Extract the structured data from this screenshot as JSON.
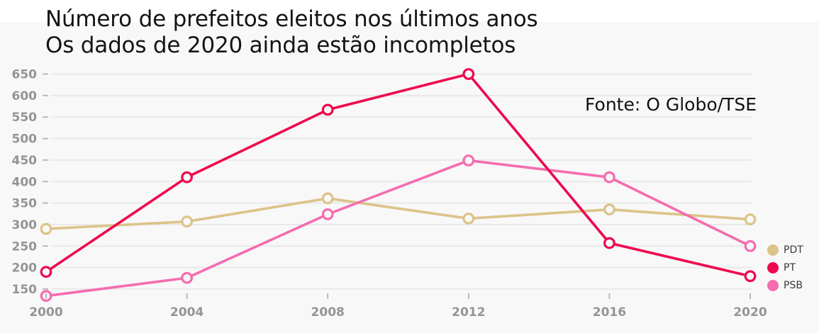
{
  "chart_data": {
    "type": "line",
    "title": "Número de prefeitos eleitos nos últimos anos",
    "subtitle": "Os dados de 2020 ainda estão incompletos",
    "source": "Fonte: O Globo/TSE",
    "categories": [
      "2000",
      "2004",
      "2008",
      "2012",
      "2016",
      "2020"
    ],
    "series": [
      {
        "name": "PDT",
        "color": "#dcc389",
        "values": [
          290,
          307,
          361,
          314,
          335,
          312
        ]
      },
      {
        "name": "PT",
        "color": "#ee0a4e",
        "values": [
          190,
          410,
          567,
          650,
          257,
          180
        ]
      },
      {
        "name": "PSB",
        "color": "#f56cb0",
        "values": [
          134,
          176,
          324,
          449,
          410,
          250
        ]
      }
    ],
    "draw_order": [
      0,
      2,
      1
    ],
    "ylim": [
      150,
      650
    ],
    "ytick_step": 50,
    "grid": true,
    "legend_position": "right",
    "axis_label_color": "#949494",
    "background_color": "#f8f8f8"
  }
}
